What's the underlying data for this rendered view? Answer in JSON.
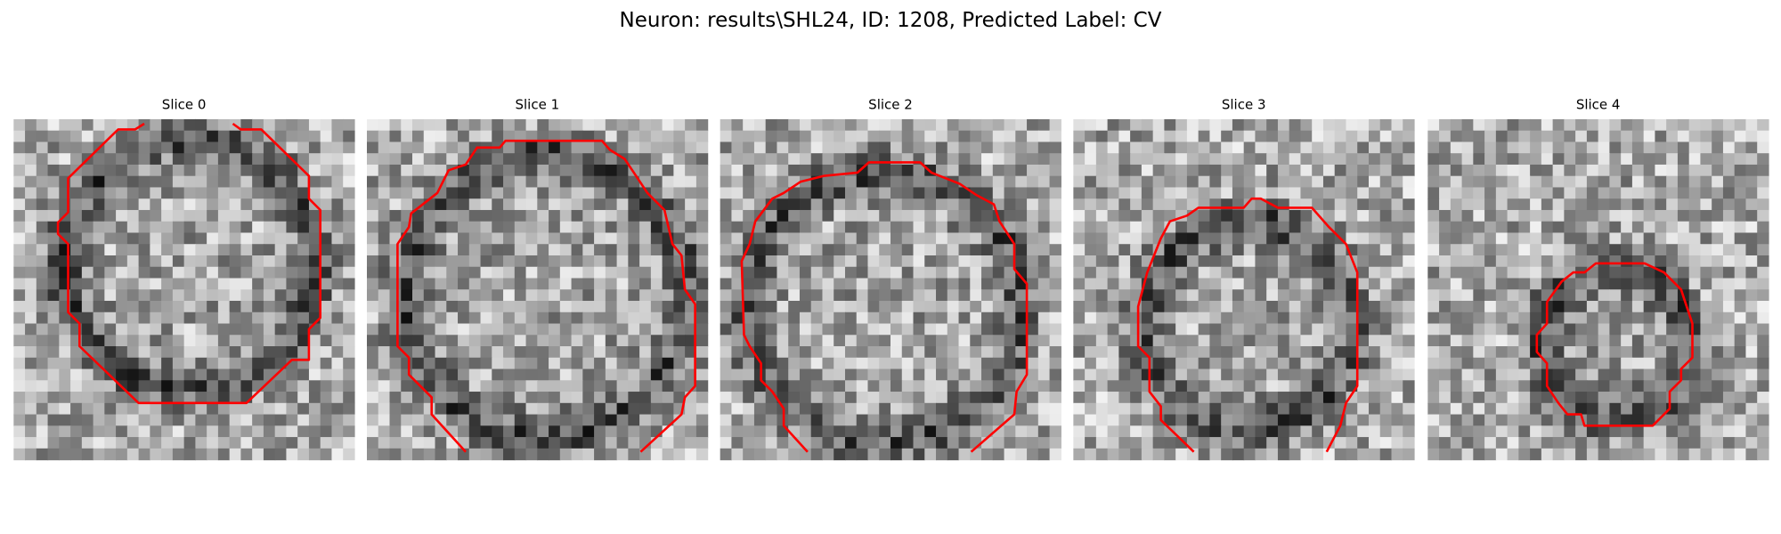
{
  "header": {
    "title": "Neuron: results\\SHL24, ID: 1208, Predicted Label: CV"
  },
  "panels": [
    {
      "title": "Slice 0"
    },
    {
      "title": "Slice 1"
    },
    {
      "title": "Slice 2"
    },
    {
      "title": "Slice 3"
    },
    {
      "title": "Slice 4"
    }
  ]
}
